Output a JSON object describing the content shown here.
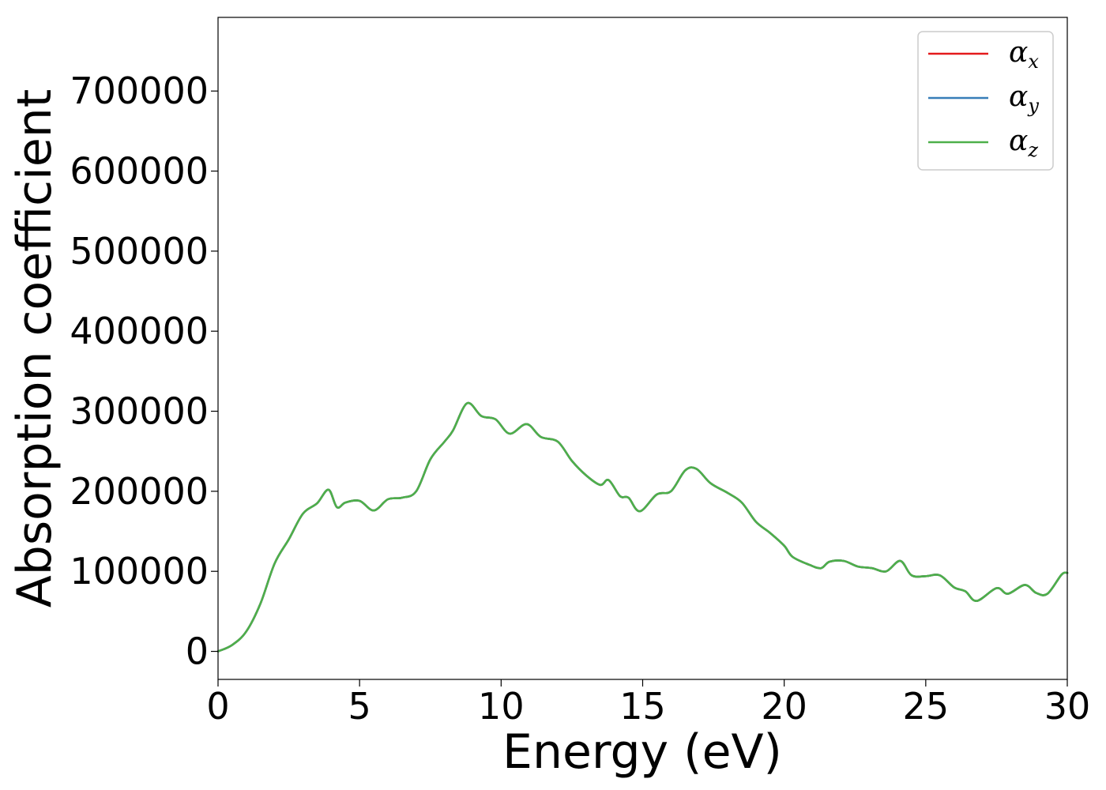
{
  "chart_data": {
    "type": "line",
    "title": "",
    "xlabel": "Energy (eV)",
    "ylabel": "Absorption coefficient",
    "xlim": [
      0,
      30
    ],
    "ylim": [
      -35000,
      792000
    ],
    "xticks": [
      0,
      5,
      10,
      15,
      20,
      25,
      30
    ],
    "xtick_labels": [
      "0",
      "5",
      "10",
      "15",
      "20",
      "25",
      "30"
    ],
    "yticks": [
      0,
      100000,
      200000,
      300000,
      400000,
      500000,
      600000,
      700000
    ],
    "ytick_labels": [
      "0",
      "100000",
      "200000",
      "300000",
      "400000",
      "500000",
      "600000",
      "700000"
    ],
    "grid": false,
    "legend_position": "top-right",
    "x": [
      0,
      0.5,
      1.0,
      1.5,
      2.0,
      2.5,
      3.0,
      3.5,
      3.9,
      4.2,
      4.5,
      5.0,
      5.5,
      6.0,
      6.5,
      7.0,
      7.5,
      8.0,
      8.3,
      8.8,
      9.3,
      9.8,
      10.3,
      10.9,
      11.4,
      12.0,
      12.5,
      13.0,
      13.5,
      13.8,
      14.2,
      14.5,
      14.9,
      15.5,
      16.0,
      16.5,
      16.9,
      17.4,
      18.0,
      18.5,
      19.0,
      19.5,
      20.0,
      20.3,
      20.9,
      21.3,
      21.6,
      22.1,
      22.6,
      23.1,
      23.6,
      24.1,
      24.5,
      25.0,
      25.5,
      26.0,
      26.4,
      26.8,
      27.5,
      27.9,
      28.5,
      28.9,
      29.3,
      29.8,
      30.0
    ],
    "series": [
      {
        "name": "α_x",
        "color": "#e41a1c",
        "values": [
          0,
          8000,
          25000,
          60000,
          110000,
          140000,
          172000,
          185000,
          202000,
          180000,
          186000,
          188000,
          176000,
          190000,
          192000,
          200000,
          240000,
          262000,
          276000,
          310000,
          294000,
          290000,
          272000,
          284000,
          268000,
          262000,
          238000,
          220000,
          208000,
          214000,
          194000,
          192000,
          175000,
          196000,
          200000,
          226000,
          228000,
          210000,
          198000,
          186000,
          162000,
          148000,
          132000,
          118000,
          108000,
          104000,
          112000,
          113000,
          106000,
          104000,
          100000,
          113000,
          95000,
          94000,
          95000,
          80000,
          75000,
          63000,
          79000,
          72000,
          83000,
          73000,
          72000,
          96000,
          98000
        ]
      },
      {
        "name": "α_y",
        "color": "#377eb8",
        "values": [
          0,
          8000,
          25000,
          60000,
          110000,
          140000,
          172000,
          185000,
          202000,
          180000,
          186000,
          188000,
          176000,
          190000,
          192000,
          200000,
          240000,
          262000,
          276000,
          310000,
          294000,
          290000,
          272000,
          284000,
          268000,
          262000,
          238000,
          220000,
          208000,
          214000,
          194000,
          192000,
          175000,
          196000,
          200000,
          226000,
          228000,
          210000,
          198000,
          186000,
          162000,
          148000,
          132000,
          118000,
          108000,
          104000,
          112000,
          113000,
          106000,
          104000,
          100000,
          113000,
          95000,
          94000,
          95000,
          80000,
          75000,
          63000,
          79000,
          72000,
          83000,
          73000,
          72000,
          96000,
          98000
        ]
      },
      {
        "name": "α_z",
        "color": "#4daf4a",
        "values": [
          0,
          8000,
          25000,
          60000,
          110000,
          140000,
          172000,
          185000,
          202000,
          180000,
          186000,
          188000,
          176000,
          190000,
          192000,
          200000,
          240000,
          262000,
          276000,
          310000,
          294000,
          290000,
          272000,
          284000,
          268000,
          262000,
          238000,
          220000,
          208000,
          214000,
          194000,
          192000,
          175000,
          196000,
          200000,
          226000,
          228000,
          210000,
          198000,
          186000,
          162000,
          148000,
          132000,
          118000,
          108000,
          104000,
          112000,
          113000,
          106000,
          104000,
          100000,
          113000,
          95000,
          94000,
          95000,
          80000,
          75000,
          63000,
          79000,
          72000,
          83000,
          73000,
          72000,
          96000,
          98000
        ]
      }
    ],
    "legend": [
      {
        "symbol": "α",
        "sub": "x",
        "color": "#e41a1c"
      },
      {
        "symbol": "α",
        "sub": "y",
        "color": "#377eb8"
      },
      {
        "symbol": "α",
        "sub": "z",
        "color": "#4daf4a"
      }
    ]
  }
}
